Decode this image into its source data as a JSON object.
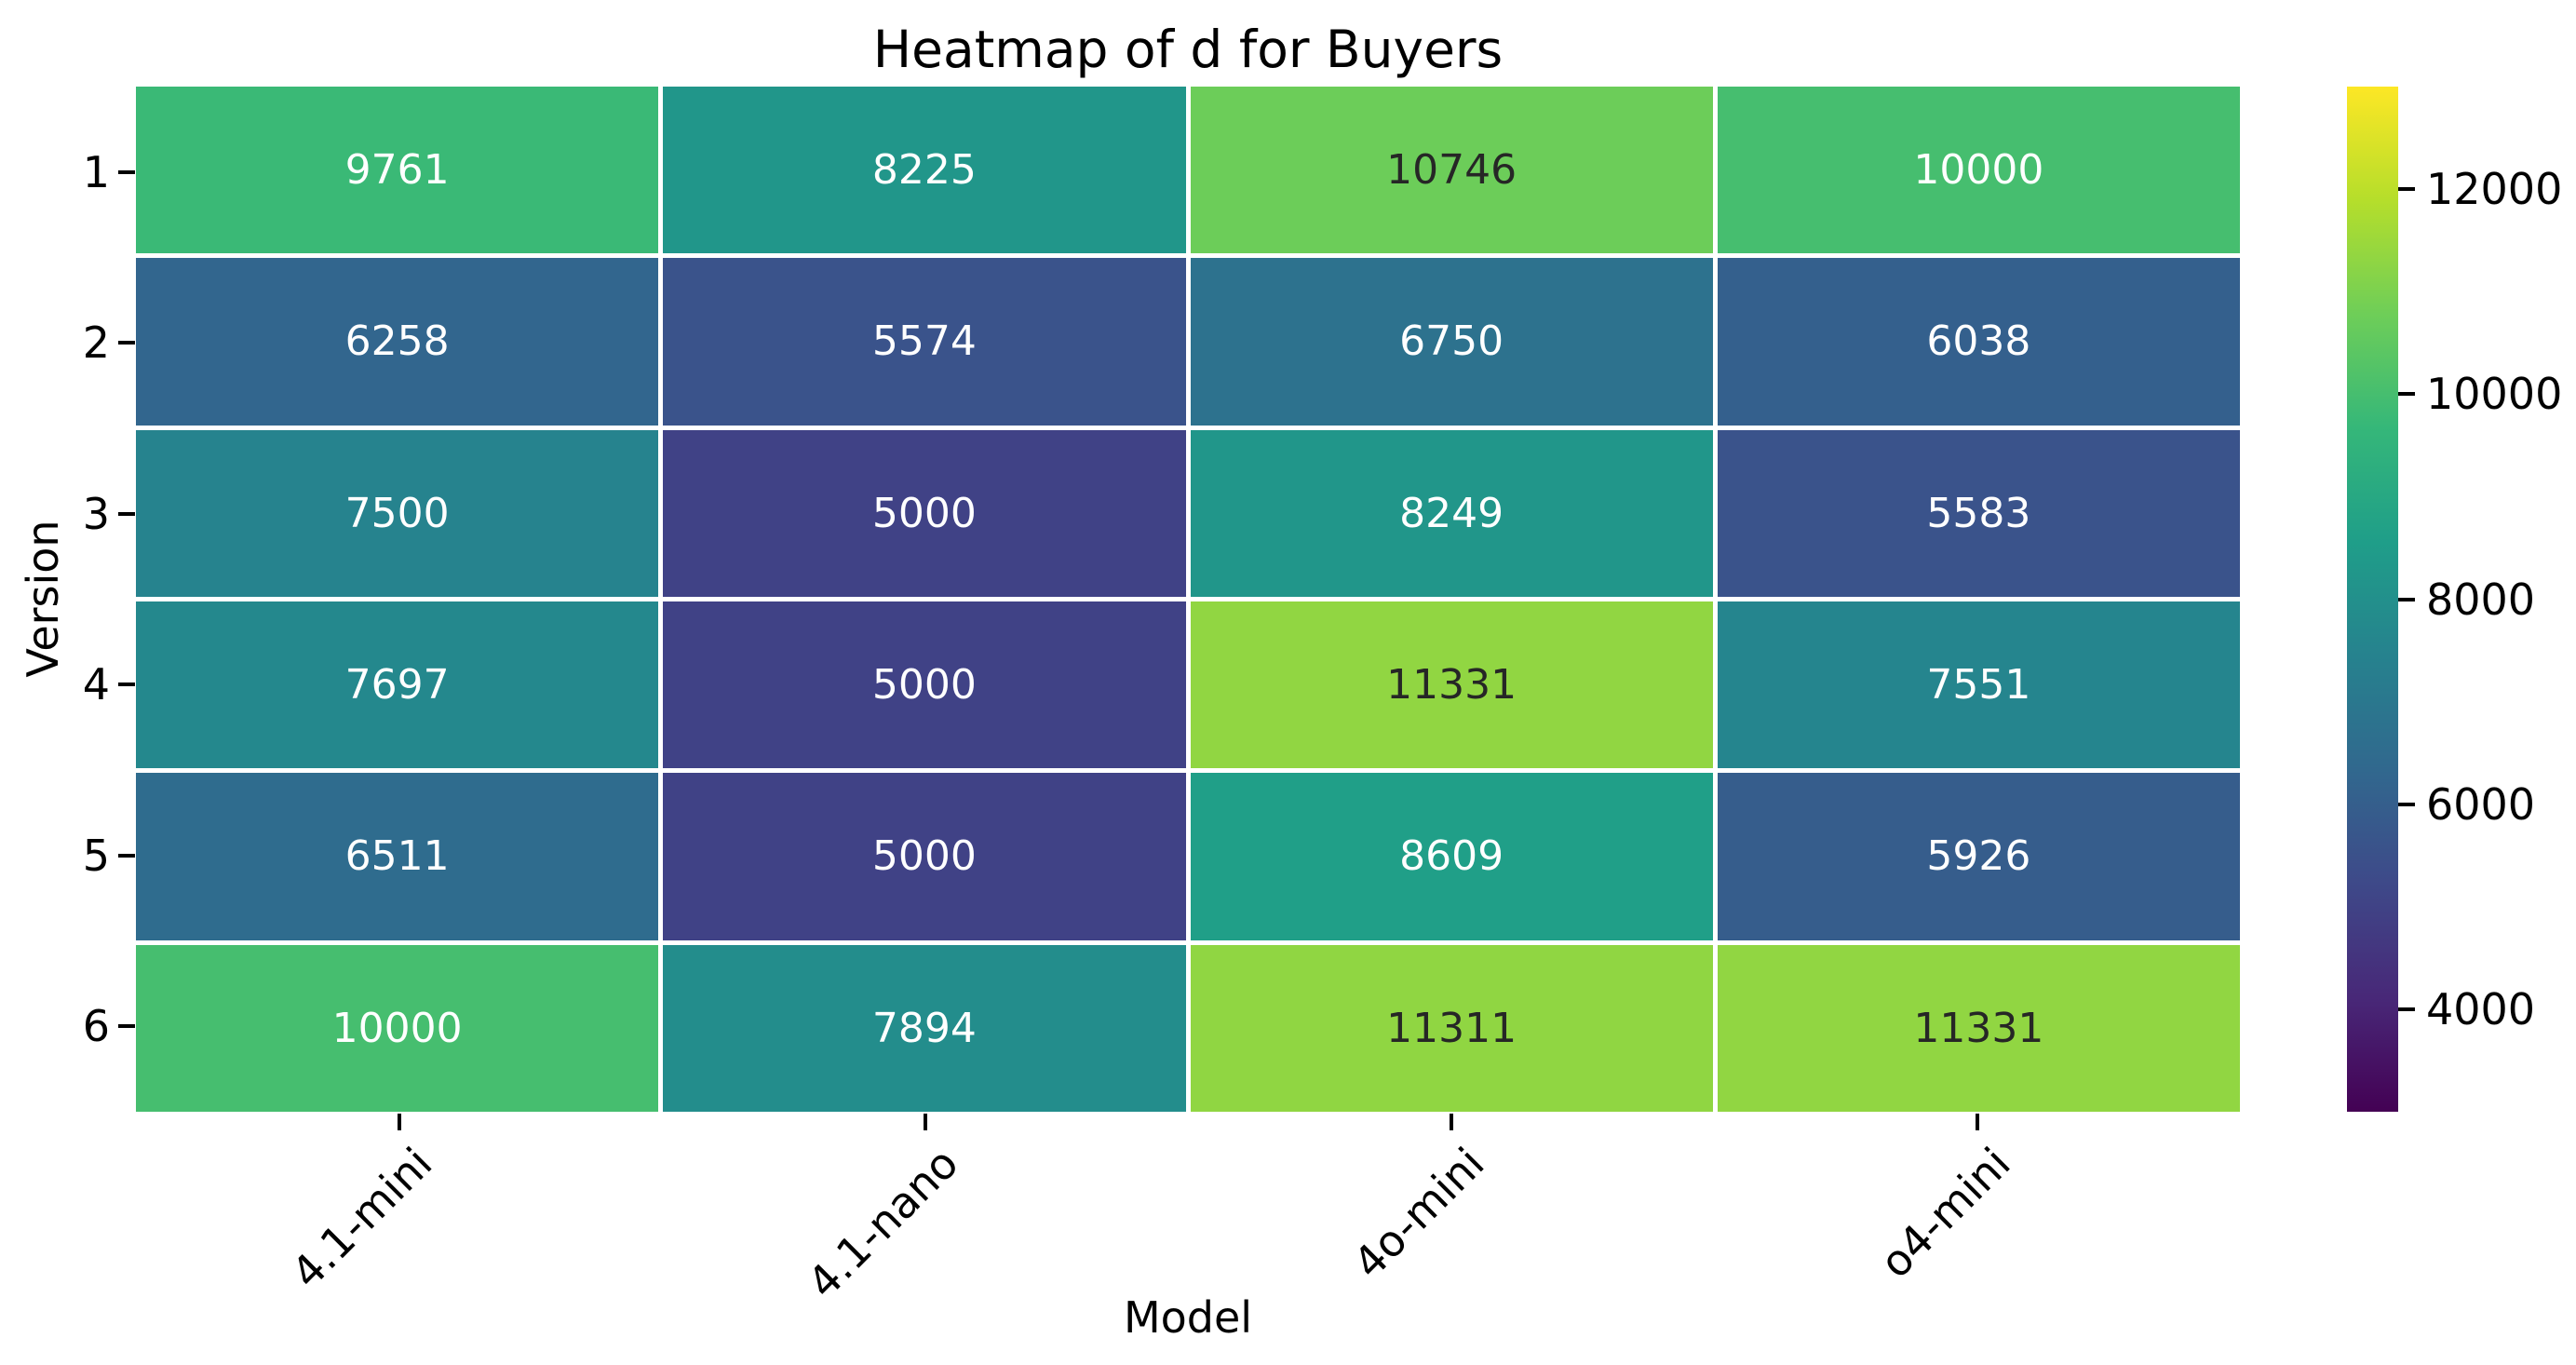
{
  "chart_data": {
    "type": "heatmap",
    "title": "Heatmap of d for Buyers",
    "xlabel": "Model",
    "ylabel": "Version",
    "x_categories": [
      "4.1-mini",
      "4.1-nano",
      "4o-mini",
      "o4-mini"
    ],
    "y_categories": [
      "1",
      "2",
      "3",
      "4",
      "5",
      "6"
    ],
    "values": [
      [
        9761,
        8225,
        10746,
        10000
      ],
      [
        6258,
        5574,
        6750,
        6038
      ],
      [
        7500,
        5000,
        8249,
        5583
      ],
      [
        7697,
        5000,
        11331,
        7551
      ],
      [
        6511,
        5000,
        8609,
        5926
      ],
      [
        10000,
        7894,
        11311,
        11331
      ]
    ],
    "colormap": "viridis",
    "vmin": 3000,
    "vmax": 13000,
    "colorbar_ticks": [
      4000,
      6000,
      8000,
      10000,
      12000
    ],
    "colorbar_position": "right",
    "grid": false,
    "annotated": true,
    "colors": {
      "viridis_stops": [
        "#440154",
        "#482878",
        "#3e4989",
        "#31688e",
        "#26828e",
        "#1f9e89",
        "#35b779",
        "#6ece58",
        "#b5de2b",
        "#fde725"
      ],
      "annotation_dark": "#262626",
      "annotation_light": "#ffffff",
      "axis_text": "#000000",
      "cell_divider": "#ffffff",
      "background": "#ffffff"
    }
  }
}
